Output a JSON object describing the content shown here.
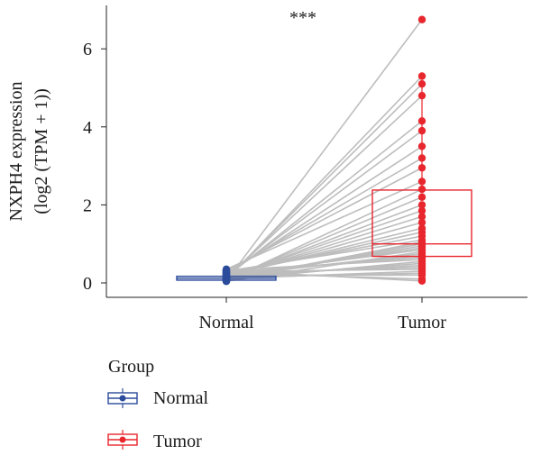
{
  "chart_data": {
    "type": "box",
    "title": "",
    "xlabel": "",
    "ylabel_line1": "NXPH4 expression",
    "ylabel_line2": "(log2 (TPM + 1))",
    "categories": [
      "Normal",
      "Tumor"
    ],
    "ylim": [
      -0.3,
      7.0
    ],
    "yticks": [
      "0",
      "2",
      "4",
      "6"
    ],
    "significance": "***",
    "legend": {
      "title": "Group",
      "placement": "bottom-left",
      "items": [
        "Normal",
        "Tumor"
      ]
    },
    "colors": {
      "Normal": "#2b4b9b",
      "Tumor": "#e8262d",
      "pair_line": "#bdbdbd",
      "axis": "#222222"
    },
    "series": [
      {
        "name": "Normal",
        "box": {
          "q1": 0.07,
          "median": 0.12,
          "q3": 0.17,
          "whisker_low": 0.0,
          "whisker_high": 0.3
        },
        "values": [
          0.05,
          0.08,
          0.1,
          0.12,
          0.15,
          0.18,
          0.22,
          0.28,
          0.32,
          0.35,
          0.06,
          0.09,
          0.11,
          0.13,
          0.14,
          0.16,
          0.19,
          0.21,
          0.25,
          0.3,
          0.07,
          0.1,
          0.12,
          0.15,
          0.2,
          0.04,
          0.17,
          0.23,
          0.27,
          0.33,
          0.08,
          0.13,
          0.18,
          0.24,
          0.29,
          0.11,
          0.14,
          0.2,
          0.26,
          0.31
        ]
      },
      {
        "name": "Tumor",
        "box": {
          "q1": 0.68,
          "median": 1.0,
          "q3": 2.38,
          "whisker_low": 0.05,
          "whisker_high": 5.2
        },
        "values": [
          6.75,
          5.3,
          5.1,
          4.8,
          4.15,
          3.9,
          3.5,
          3.2,
          2.95,
          2.6,
          2.4,
          2.2,
          2.0,
          1.85,
          1.7,
          1.55,
          1.4,
          1.3,
          1.2,
          1.1,
          1.05,
          1.0,
          0.95,
          0.9,
          0.85,
          0.8,
          0.75,
          0.7,
          0.65,
          0.6,
          0.55,
          0.5,
          0.45,
          0.4,
          0.35,
          0.3,
          0.25,
          0.2,
          0.1,
          0.05
        ]
      }
    ]
  }
}
